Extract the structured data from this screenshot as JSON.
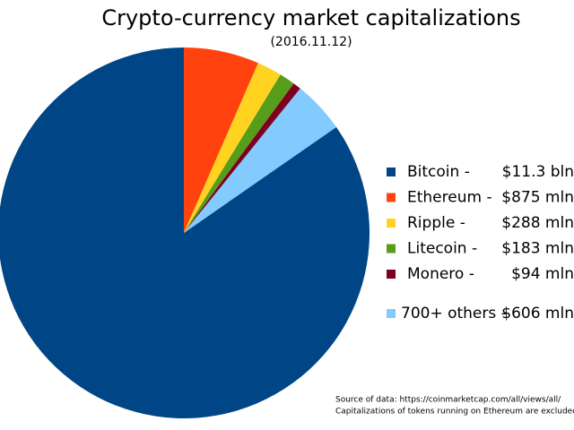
{
  "chart_data": {
    "type": "pie",
    "title": "Crypto-currency market capitalizations",
    "subtitle": "(2016.11.12)",
    "categories": [
      "Bitcoin -",
      "Ethereum -",
      "Ripple -",
      "Litecoin -",
      "Monero -",
      "700+ others -"
    ],
    "values": [
      11300,
      875,
      288,
      183,
      94,
      606
    ],
    "value_labels": [
      "$11.3 bln",
      "$875 mln",
      "$288 mln",
      "$183 mln",
      "$94 mln",
      "$606 mln"
    ],
    "colors": [
      "#004586",
      "#ff420e",
      "#ffd320",
      "#579d1c",
      "#7e0021",
      "#83caff"
    ],
    "annotations": [
      "Source of data: https://coinmarketcap.com/all/views/all/",
      "Capitalizations of tokens running on Ethereum are excluded"
    ]
  }
}
